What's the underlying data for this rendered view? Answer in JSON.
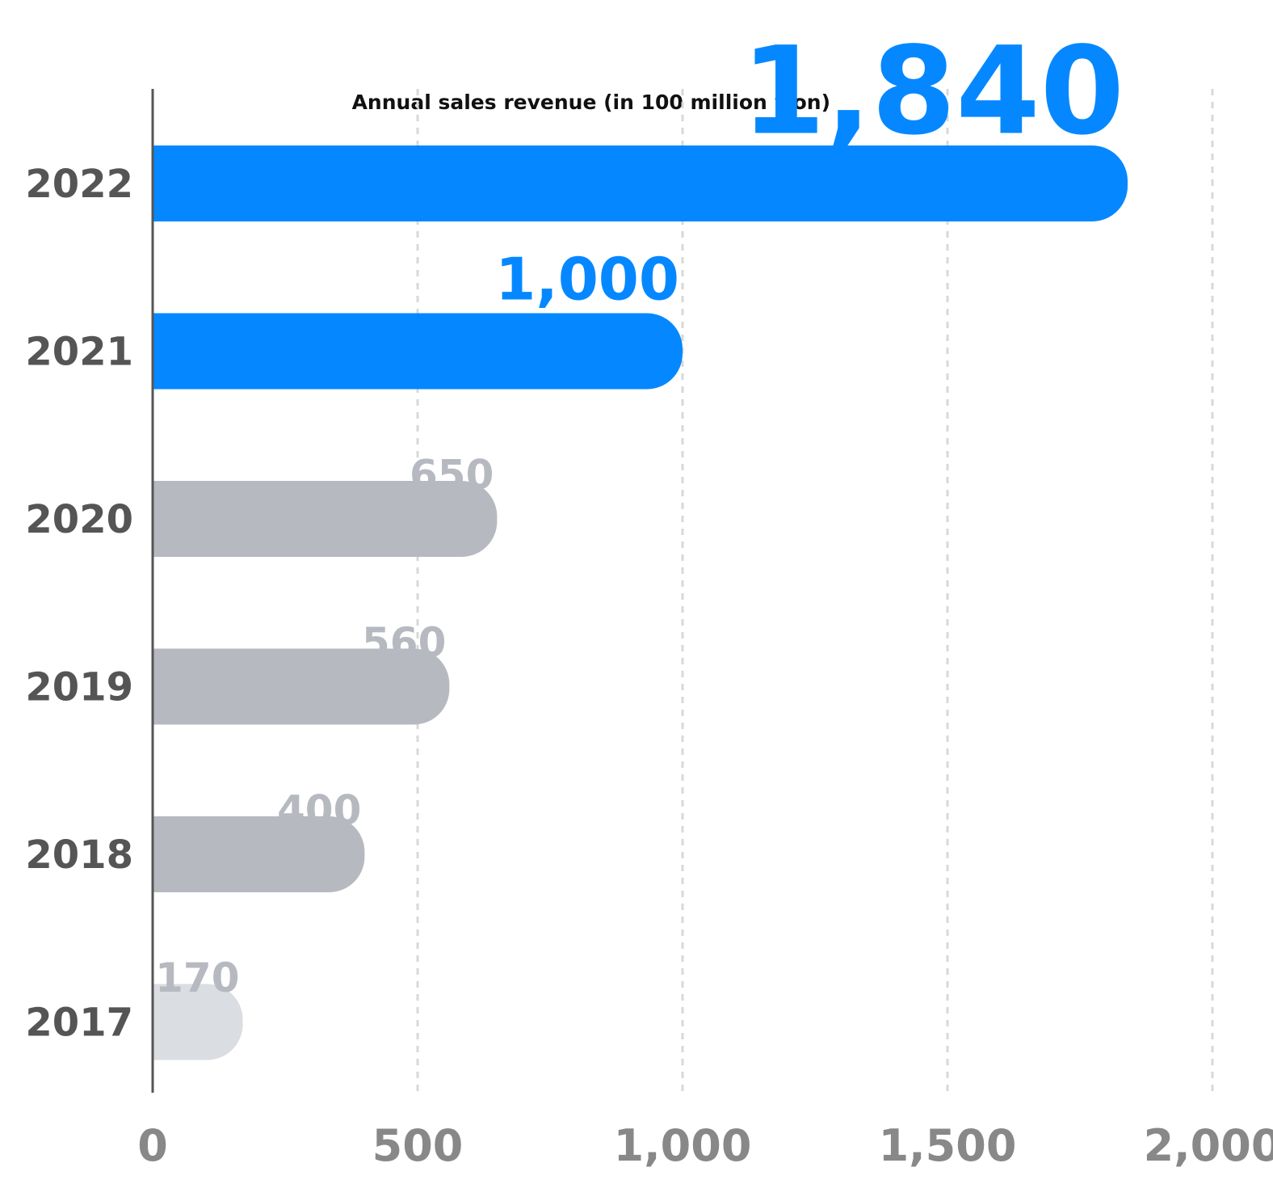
{
  "chart_data": {
    "type": "bar",
    "orientation": "horizontal",
    "title": "Annual sales revenue (in 100 million won)",
    "categories": [
      "2022",
      "2021",
      "2020",
      "2019",
      "2018",
      "2017"
    ],
    "values": [
      1840,
      1000,
      650,
      560,
      400,
      170
    ],
    "value_labels": [
      "1,840",
      "1,000",
      "650",
      "560",
      "400",
      "170"
    ],
    "colors": [
      "#0588ff",
      "#0588ff",
      "#b6b9c0",
      "#b6b9c0",
      "#b6b9c0",
      "#dadde1"
    ],
    "label_colors": [
      "#0588ff",
      "#0588ff",
      "#b6b9c0",
      "#b6b9c0",
      "#b6b9c0",
      "#b6b9c0"
    ],
    "xlim": [
      0,
      2000
    ],
    "xticks": [
      0,
      500,
      {
        "value": 1000,
        "label": "1,000"
      },
      {
        "value": 1500,
        "label": "1,500"
      },
      {
        "value": 2000,
        "label": "2,000"
      }
    ],
    "grid": true
  }
}
